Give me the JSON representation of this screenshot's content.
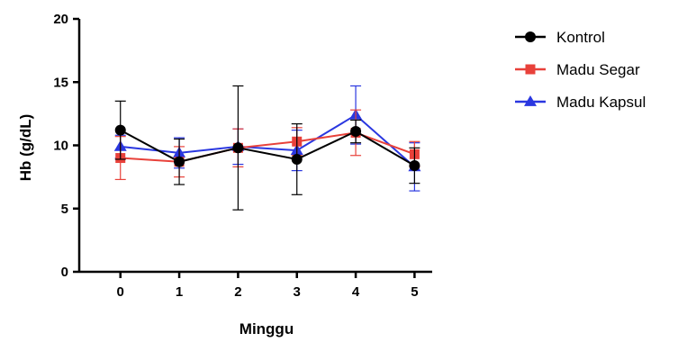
{
  "chart_data": {
    "type": "line",
    "xlabel": "Minggu",
    "ylabel": "Hb (g/dL)",
    "x": [
      0,
      1,
      2,
      3,
      4,
      5
    ],
    "xlim": [
      -0.7,
      5.3
    ],
    "ylim": [
      0,
      20
    ],
    "yticks": [
      0,
      5,
      10,
      15,
      20
    ],
    "grid": false,
    "legend_position": "top-right",
    "series": [
      {
        "name": "Kontrol",
        "color": "#000000",
        "marker": "circle",
        "values": [
          11.2,
          8.7,
          9.8,
          8.9,
          11.1,
          8.4
        ],
        "errors": [
          2.3,
          1.8,
          4.9,
          2.8,
          0.9,
          1.4
        ]
      },
      {
        "name": "Madu Segar",
        "color": "#e8413a",
        "marker": "square",
        "values": [
          9.0,
          8.7,
          9.8,
          10.3,
          11.0,
          9.3
        ],
        "errors": [
          1.7,
          1.2,
          1.5,
          1.1,
          1.8,
          1.0
        ]
      },
      {
        "name": "Madu Kapsul",
        "color": "#2a37e0",
        "marker": "triangle",
        "values": [
          9.9,
          9.4,
          9.9,
          9.6,
          12.4,
          8.3
        ],
        "errors": [
          0.9,
          1.2,
          1.4,
          1.6,
          2.3,
          1.9
        ]
      }
    ]
  }
}
